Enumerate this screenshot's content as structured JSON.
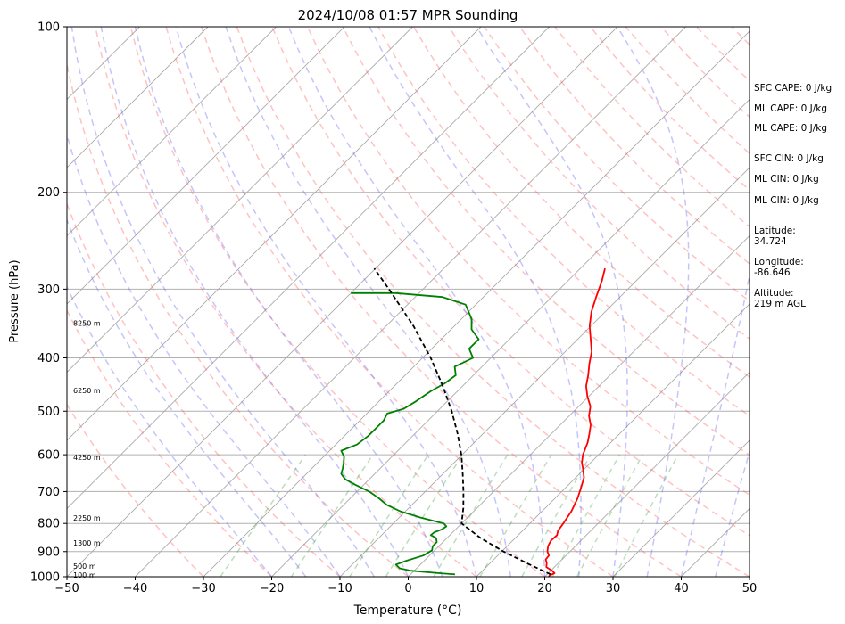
{
  "chart_data": {
    "type": "skewt",
    "title": "2024/10/08 01:57 MPR Sounding",
    "xlabel": "Temperature (°C)",
    "ylabel": "Pressure (hPa)",
    "xlim": [
      -50,
      50
    ],
    "ylim": [
      1000,
      100
    ],
    "y_scale": "log",
    "grid": true,
    "x_ticks": [
      -50,
      -40,
      -30,
      -20,
      -10,
      0,
      10,
      20,
      30,
      40,
      50
    ],
    "y_ticks": [
      100,
      200,
      300,
      400,
      500,
      600,
      700,
      800,
      900,
      1000
    ],
    "height_labels": [
      {
        "text": "100 m",
        "p": 992
      },
      {
        "text": "500 m",
        "p": 957
      },
      {
        "text": "1300 m",
        "p": 868
      },
      {
        "text": "2250 m",
        "p": 782
      },
      {
        "text": "4250 m",
        "p": 606
      },
      {
        "text": "6250 m",
        "p": 458
      },
      {
        "text": "8250 m",
        "p": 346
      }
    ],
    "series": [
      {
        "color": "#ff0000",
        "points": [
          [
            1000,
            20.6
          ],
          [
            995,
            20.5
          ],
          [
            985,
            20.9
          ],
          [
            975,
            20.2
          ],
          [
            960,
            18.8
          ],
          [
            945,
            18.3
          ],
          [
            930,
            17.6
          ],
          [
            915,
            17.5
          ],
          [
            900,
            16.7
          ],
          [
            880,
            16.0
          ],
          [
            860,
            15.6
          ],
          [
            840,
            15.7
          ],
          [
            825,
            15.2
          ],
          [
            800,
            14.9
          ],
          [
            760,
            14.3
          ],
          [
            720,
            13.3
          ],
          [
            690,
            12.3
          ],
          [
            660,
            11.2
          ],
          [
            640,
            10.0
          ],
          [
            620,
            8.7
          ],
          [
            600,
            7.7
          ],
          [
            570,
            6.6
          ],
          [
            550,
            5.6
          ],
          [
            530,
            4.5
          ],
          [
            510,
            2.9
          ],
          [
            490,
            1.7
          ],
          [
            470,
            -0.2
          ],
          [
            450,
            -1.9
          ],
          [
            430,
            -3.2
          ],
          [
            410,
            -4.7
          ],
          [
            390,
            -6.1
          ],
          [
            370,
            -8.1
          ],
          [
            350,
            -10.2
          ],
          [
            330,
            -12.0
          ],
          [
            310,
            -13.5
          ],
          [
            290,
            -15.0
          ],
          [
            275,
            -16.4
          ]
        ]
      },
      {
        "color": "#008000",
        "points": [
          [
            990,
            6.5
          ],
          [
            985,
            4.0
          ],
          [
            975,
            -0.5
          ],
          [
            965,
            -2.5
          ],
          [
            950,
            -3.6
          ],
          [
            935,
            -2.6
          ],
          [
            915,
            -0.9
          ],
          [
            895,
            -0.4
          ],
          [
            880,
            -0.9
          ],
          [
            865,
            -0.9
          ],
          [
            850,
            -1.6
          ],
          [
            840,
            -2.8
          ],
          [
            830,
            -2.7
          ],
          [
            820,
            -2.0
          ],
          [
            810,
            -1.8
          ],
          [
            800,
            -2.6
          ],
          [
            780,
            -7.0
          ],
          [
            760,
            -10.8
          ],
          [
            740,
            -13.7
          ],
          [
            720,
            -15.8
          ],
          [
            700,
            -18.2
          ],
          [
            680,
            -21.3
          ],
          [
            665,
            -23.5
          ],
          [
            650,
            -24.9
          ],
          [
            635,
            -25.5
          ],
          [
            620,
            -26.2
          ],
          [
            605,
            -27.0
          ],
          [
            590,
            -28.3
          ],
          [
            575,
            -26.9
          ],
          [
            555,
            -26.5
          ],
          [
            540,
            -26.5
          ],
          [
            520,
            -26.5
          ],
          [
            505,
            -27.0
          ],
          [
            495,
            -25.3
          ],
          [
            480,
            -24.6
          ],
          [
            460,
            -23.9
          ],
          [
            445,
            -23.0
          ],
          [
            430,
            -22.6
          ],
          [
            415,
            -24.0
          ],
          [
            400,
            -22.6
          ],
          [
            385,
            -24.5
          ],
          [
            370,
            -24.5
          ],
          [
            355,
            -27.0
          ],
          [
            340,
            -28.5
          ],
          [
            320,
            -31.5
          ],
          [
            310,
            -36.0
          ],
          [
            305,
            -43.4
          ],
          [
            305,
            -50.0
          ]
        ]
      },
      {
        "color": "#000000",
        "dashed": true,
        "points": [
          [
            990,
            20.5
          ],
          [
            950,
            16.0
          ],
          [
            900,
            10.3
          ],
          [
            850,
            4.9
          ],
          [
            800,
            0.0
          ],
          [
            750,
            -2.0
          ],
          [
            700,
            -4.4
          ],
          [
            650,
            -7.1
          ],
          [
            600,
            -10.1
          ],
          [
            550,
            -13.7
          ],
          [
            500,
            -17.9
          ],
          [
            450,
            -22.9
          ],
          [
            400,
            -28.8
          ],
          [
            350,
            -36.0
          ],
          [
            300,
            -45.0
          ],
          [
            275,
            -50.2
          ]
        ]
      }
    ],
    "annotations": [
      {
        "label": "SFC CAPE: 0 J/kg",
        "top": 93
      },
      {
        "label": "ML CAPE: 0 J/kg",
        "top": 116
      },
      {
        "label": "ML CAPE: 0 J/kg",
        "top": 138
      },
      {
        "label": "SFC CIN: 0 J/kg",
        "top": 172
      },
      {
        "label": "ML CIN: 0 J/kg",
        "top": 195
      },
      {
        "label": "ML CIN: 0 J/kg",
        "top": 219
      },
      {
        "label": "Latitude:\n34.724",
        "top": 253
      },
      {
        "label": "Longitude:\n-86.646",
        "top": 288
      },
      {
        "label": "Altitude:\n219 m AGL",
        "top": 323
      }
    ]
  }
}
